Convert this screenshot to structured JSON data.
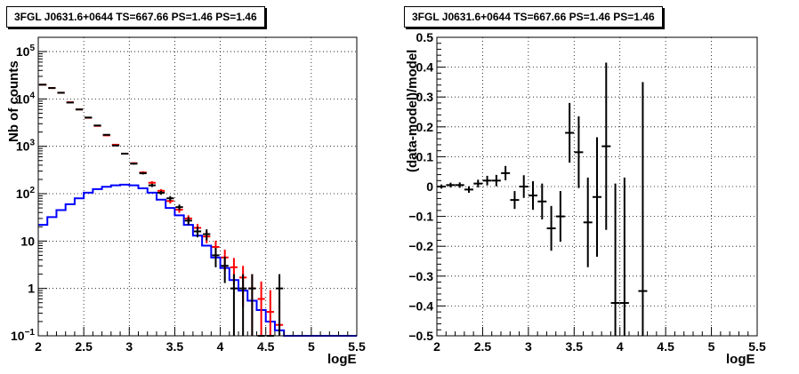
{
  "chart_data": [
    {
      "type": "line",
      "title": "3FGL J0631.6+0644 TS=667.66 PS=1.46 PS=1.46",
      "xlabel": "logE",
      "ylabel": "Nb of counts",
      "xlim": [
        2,
        5.5
      ],
      "ylim": [
        0.1,
        200000
      ],
      "yscale": "log",
      "grid": true,
      "x_ticks": [
        "2",
        "2.5",
        "3",
        "3.5",
        "4",
        "4.5",
        "5",
        "5.5"
      ],
      "y_ticks": [
        {
          "v": 0.1,
          "label": "10",
          "exp": "−1"
        },
        {
          "v": 1,
          "label": "1",
          "exp": ""
        },
        {
          "v": 10,
          "label": "10",
          "exp": ""
        },
        {
          "v": 100,
          "label": "10",
          "exp": "2"
        },
        {
          "v": 1000,
          "label": "10",
          "exp": "3"
        },
        {
          "v": 10000,
          "label": "10",
          "exp": "4"
        },
        {
          "v": 100000,
          "label": "10",
          "exp": "5"
        }
      ],
      "bin_edges": [
        2.0,
        2.1,
        2.2,
        2.3,
        2.4,
        2.5,
        2.6,
        2.7,
        2.8,
        2.9,
        3.0,
        3.1,
        3.2,
        3.3,
        3.4,
        3.5,
        3.6,
        3.7,
        3.8,
        3.9,
        4.0,
        4.1,
        4.2,
        4.3,
        4.4,
        4.5,
        4.6,
        4.7,
        4.8,
        4.9,
        5.0,
        5.1,
        5.2,
        5.3,
        5.4,
        5.5
      ],
      "series": [
        {
          "color": "#0000ff",
          "style": "step",
          "values": [
            22,
            32,
            45,
            60,
            80,
            105,
            125,
            140,
            150,
            155,
            150,
            130,
            105,
            75,
            50,
            35,
            22,
            13,
            8,
            4.5,
            2.7,
            1.5,
            0.9,
            0.55,
            0.35,
            0.2,
            0.13,
            0.1,
            0.1,
            0.1,
            0.1,
            0.1,
            0.1,
            0.1,
            0.1
          ]
        },
        {
          "color": "#ff0000",
          "style": "errorbar",
          "x": [
            2.05,
            2.15,
            2.25,
            2.35,
            2.45,
            2.55,
            2.65,
            2.75,
            2.85,
            2.95,
            3.05,
            3.15,
            3.25,
            3.35,
            3.45,
            3.55,
            3.65,
            3.75,
            3.85,
            3.95,
            4.05,
            4.15,
            4.25,
            4.35,
            4.45,
            4.55,
            4.65
          ],
          "y": [
            20000,
            17000,
            13500,
            8500,
            6000,
            4000,
            2700,
            1700,
            1080,
            700,
            440,
            280,
            170,
            115,
            70,
            46,
            30,
            19,
            12.5,
            7.5,
            4.5,
            2.8,
            1.7,
            1.0,
            0.6,
            0.32,
            0.17
          ],
          "err": [
            140,
            130,
            115,
            90,
            75,
            60,
            50,
            40,
            32,
            26,
            20,
            16,
            13,
            10,
            8,
            6.5,
            5,
            4,
            3.5,
            2.7,
            2.1,
            1.6,
            1.3,
            1.0,
            0.8,
            0.6,
            0.4
          ]
        },
        {
          "color": "#000000",
          "style": "errorbar",
          "x": [
            2.05,
            2.15,
            2.25,
            2.35,
            2.45,
            2.55,
            2.65,
            2.75,
            2.85,
            2.95,
            3.05,
            3.15,
            3.25,
            3.35,
            3.45,
            3.55,
            3.65,
            3.75,
            3.85,
            3.95,
            4.05,
            4.15,
            4.25,
            4.35,
            4.45,
            4.55,
            4.65
          ],
          "y": [
            20000,
            17000,
            13500,
            8400,
            6000,
            4050,
            2750,
            1750,
            1040,
            700,
            430,
            270,
            150,
            105,
            80,
            52,
            27,
            16,
            14,
            5,
            3,
            1,
            1,
            1,
            0.1,
            0.1,
            1
          ],
          "err": [
            140,
            130,
            115,
            90,
            75,
            60,
            50,
            40,
            32,
            26,
            20,
            16,
            12,
            10,
            9,
            7,
            5,
            4,
            3.7,
            2.2,
            1.7,
            1,
            1,
            1,
            0,
            0,
            1
          ]
        }
      ]
    },
    {
      "type": "scatter",
      "title": "3FGL J0631.6+0644 TS=667.66 PS=1.46 PS=1.46",
      "xlabel": "logE",
      "ylabel": "(data-model)/model",
      "xlim": [
        2,
        5.5
      ],
      "ylim": [
        -0.5,
        0.5
      ],
      "grid": true,
      "x_ticks": [
        "2",
        "2.5",
        "3",
        "3.5",
        "4",
        "4.5",
        "5",
        "5.5"
      ],
      "y_ticks": [
        "−0.5",
        "−0.4",
        "−0.3",
        "−0.2",
        "−0.1",
        "0",
        "0.1",
        "0.2",
        "0.3",
        "0.4",
        "0.5"
      ],
      "y_tick_values": [
        -0.5,
        -0.4,
        -0.3,
        -0.2,
        -0.1,
        0,
        0.1,
        0.2,
        0.3,
        0.4,
        0.5
      ],
      "series": [
        {
          "color": "#000000",
          "style": "errorbar",
          "x": [
            2.05,
            2.15,
            2.25,
            2.35,
            2.45,
            2.55,
            2.65,
            2.75,
            2.85,
            2.95,
            3.05,
            3.15,
            3.25,
            3.35,
            3.45,
            3.55,
            3.65,
            3.75,
            3.85,
            3.95,
            4.05,
            4.25
          ],
          "y": [
            0.0,
            0.005,
            0.005,
            -0.01,
            0.01,
            0.02,
            0.02,
            0.045,
            -0.045,
            0.0,
            -0.03,
            -0.05,
            -0.14,
            -0.1,
            0.18,
            0.115,
            -0.12,
            -0.035,
            0.135,
            -0.39,
            -0.39,
            -0.35
          ],
          "err": [
            0.007,
            0.008,
            0.009,
            0.011,
            0.013,
            0.016,
            0.019,
            0.024,
            0.03,
            0.038,
            0.048,
            0.06,
            0.075,
            0.085,
            0.1,
            0.12,
            0.15,
            0.2,
            0.28,
            0.4,
            0.42,
            0.7
          ]
        }
      ]
    }
  ]
}
